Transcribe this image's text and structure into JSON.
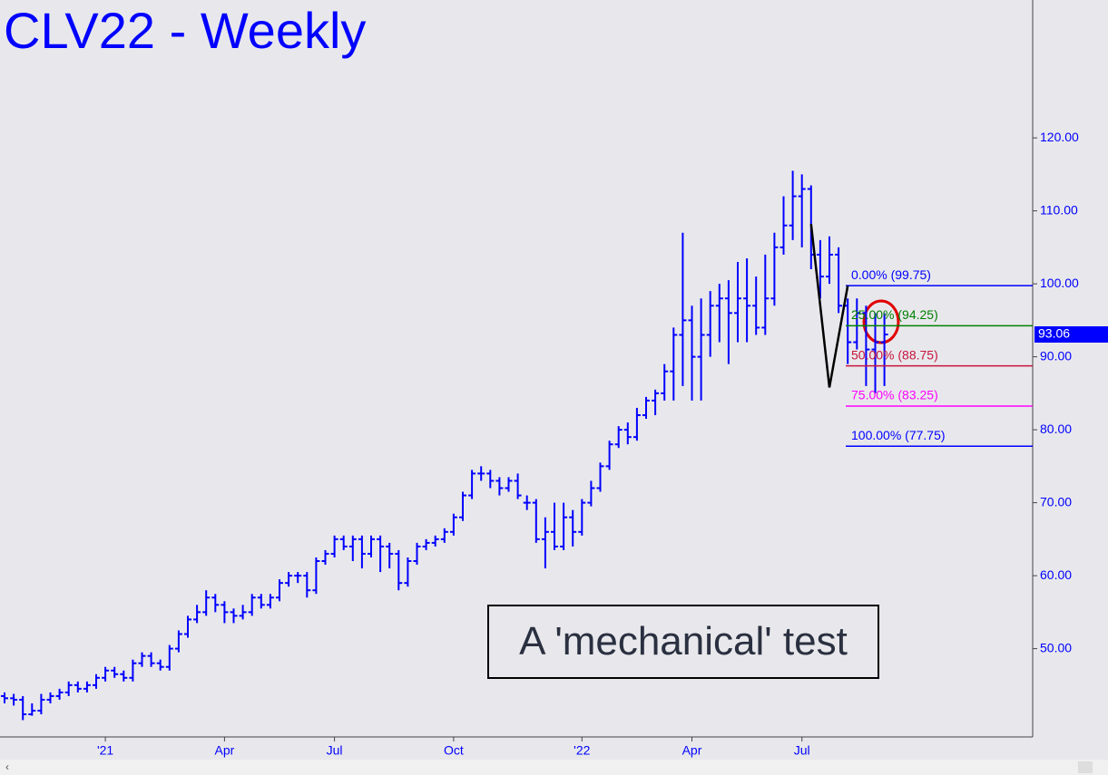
{
  "chart_data": {
    "type": "ohlc",
    "title": "CLV22 - Weekly",
    "annotation": "A 'mechanical' test",
    "color": "#0000ff",
    "categories": [
      null,
      null,
      null,
      null,
      null,
      null,
      null,
      null,
      null,
      null,
      null,
      "'21",
      null,
      null,
      null,
      null,
      null,
      null,
      null,
      null,
      null,
      null,
      null,
      null,
      "Apr",
      null,
      null,
      null,
      null,
      null,
      null,
      null,
      null,
      null,
      null,
      null,
      "Jul",
      null,
      null,
      null,
      null,
      null,
      null,
      null,
      null,
      null,
      null,
      null,
      null,
      "Oct",
      null,
      null,
      null,
      null,
      null,
      null,
      null,
      null,
      null,
      null,
      null,
      null,
      null,
      "'22",
      null,
      null,
      null,
      null,
      null,
      null,
      null,
      null,
      null,
      null,
      null,
      "Apr",
      null,
      null,
      null,
      null,
      null,
      null,
      null,
      null,
      null,
      null,
      null,
      "Jul",
      null,
      null,
      null,
      null,
      null,
      null,
      null,
      null,
      null
    ],
    "open": [
      43.5,
      43.2,
      43,
      41,
      41.5,
      43,
      43.5,
      44,
      45,
      44.5,
      45,
      46,
      47,
      46.5,
      46,
      48,
      49,
      48,
      47.5,
      50,
      52,
      54,
      55,
      57,
      56,
      55,
      54.5,
      55,
      57,
      56,
      57,
      59,
      60,
      60,
      58,
      62,
      63,
      65,
      64,
      65,
      63,
      65,
      64,
      63,
      59,
      62,
      64,
      64.5,
      65,
      66,
      68,
      71,
      74,
      74,
      73,
      72,
      73,
      70,
      70,
      65,
      66,
      64,
      68,
      66,
      70,
      72,
      75,
      78,
      80,
      79,
      82,
      84,
      85,
      88,
      93,
      95,
      90,
      93,
      97,
      98,
      96,
      98,
      97,
      94,
      98,
      105,
      108,
      112,
      113,
      104,
      101,
      104,
      97,
      92,
      96,
      91,
      92
    ],
    "high": [
      44,
      43.8,
      43.5,
      42.5,
      43.8,
      44,
      44.5,
      45.5,
      45.5,
      45.5,
      46.5,
      47.5,
      47.5,
      47,
      48.5,
      49.5,
      49.5,
      48.5,
      50.5,
      52.5,
      54.5,
      56,
      58,
      57.5,
      56.5,
      55.5,
      56,
      57.5,
      57.5,
      57.5,
      59.5,
      60.5,
      60.5,
      60.5,
      62.5,
      63.5,
      65.5,
      65.5,
      65.5,
      65.5,
      65.5,
      65.5,
      64.5,
      63.5,
      62.5,
      64.5,
      65,
      65.5,
      66.5,
      68.5,
      71.5,
      74.5,
      75,
      74.5,
      73.5,
      73.5,
      74,
      71,
      70.5,
      68,
      70,
      70,
      69,
      70.5,
      73,
      75.5,
      78.5,
      80.5,
      81,
      83,
      84.5,
      85.5,
      89,
      94,
      107,
      97,
      98,
      99,
      100,
      100.5,
      103,
      103.5,
      101,
      104,
      107,
      112,
      115.5,
      115,
      113.5,
      106,
      106.5,
      105,
      98,
      98,
      97,
      96,
      96
    ],
    "low": [
      42.5,
      42.2,
      40.2,
      40.8,
      41,
      42.5,
      43,
      43.5,
      44,
      44,
      44.5,
      45.5,
      46,
      45.5,
      45.5,
      47.5,
      47.5,
      47,
      47,
      49.5,
      51.5,
      53.5,
      54.5,
      55,
      53.5,
      53.5,
      54,
      54.5,
      55.5,
      55.5,
      56.5,
      58.5,
      59,
      57,
      57.5,
      61.5,
      62.5,
      63.5,
      62,
      61,
      62.5,
      60.5,
      61,
      58,
      58.5,
      61.5,
      63.5,
      64,
      64.5,
      65.5,
      67.5,
      70.5,
      73,
      72,
      71,
      71.5,
      70.5,
      69,
      64.5,
      61,
      63.5,
      63.5,
      64,
      65.5,
      69.5,
      71.5,
      74.5,
      77.5,
      78,
      78.5,
      81.5,
      82,
      84,
      84,
      86,
      84,
      84,
      90,
      92,
      89,
      92,
      92,
      93,
      93,
      97,
      104,
      106,
      105,
      102,
      98,
      100,
      96,
      89,
      91,
      86,
      85,
      86
    ],
    "close": [
      43.2,
      43,
      41,
      41.5,
      43,
      43.5,
      44,
      45,
      44.5,
      45,
      46,
      47,
      46.5,
      46,
      48,
      49,
      48,
      47.5,
      50,
      52,
      54,
      55,
      57,
      56,
      55,
      54.5,
      55,
      57,
      56,
      57,
      59,
      60,
      60,
      58,
      62,
      63,
      65,
      64,
      65,
      63,
      65,
      64,
      63,
      59,
      62,
      64,
      64.5,
      65,
      66,
      68,
      71,
      74,
      74,
      73,
      72,
      73,
      71,
      70,
      65,
      66,
      64,
      68,
      66,
      70,
      72,
      75,
      78,
      80,
      79,
      82,
      84,
      85,
      88,
      93,
      95,
      90,
      93,
      97,
      98,
      96,
      98,
      97,
      94,
      98,
      105,
      108,
      112,
      113,
      104,
      101,
      104,
      97,
      92,
      96,
      91,
      92,
      93.06
    ],
    "ylim": [
      37.9,
      138.9
    ],
    "yticks": [
      {
        "value": 50,
        "label": "50.00"
      },
      {
        "value": 60,
        "label": "60.00"
      },
      {
        "value": 70,
        "label": "70.00"
      },
      {
        "value": 80,
        "label": "80.00"
      },
      {
        "value": 90,
        "label": "90.00"
      },
      {
        "value": 100,
        "label": "100.00"
      },
      {
        "value": 110,
        "label": "110.00"
      },
      {
        "value": 120,
        "label": "120.00"
      }
    ],
    "fib_levels": [
      {
        "label": "0.00% (99.75)",
        "value": 99.75,
        "color": "#0000ff"
      },
      {
        "label": "25.00% (94.25)",
        "value": 94.25,
        "color": "#008000"
      },
      {
        "label": "50.00% (88.75)",
        "value": 88.75,
        "color": "#c8143c"
      },
      {
        "label": "75.00% (83.25)",
        "value": 83.25,
        "color": "#ff00ff"
      },
      {
        "label": "100.00% (77.75)",
        "value": 77.75,
        "color": "#0000ff"
      }
    ],
    "pattern": {
      "x": [
        88,
        90,
        92
      ],
      "y": [
        108.2,
        85.8,
        99.75
      ],
      "color": "#000000"
    }
  }
}
